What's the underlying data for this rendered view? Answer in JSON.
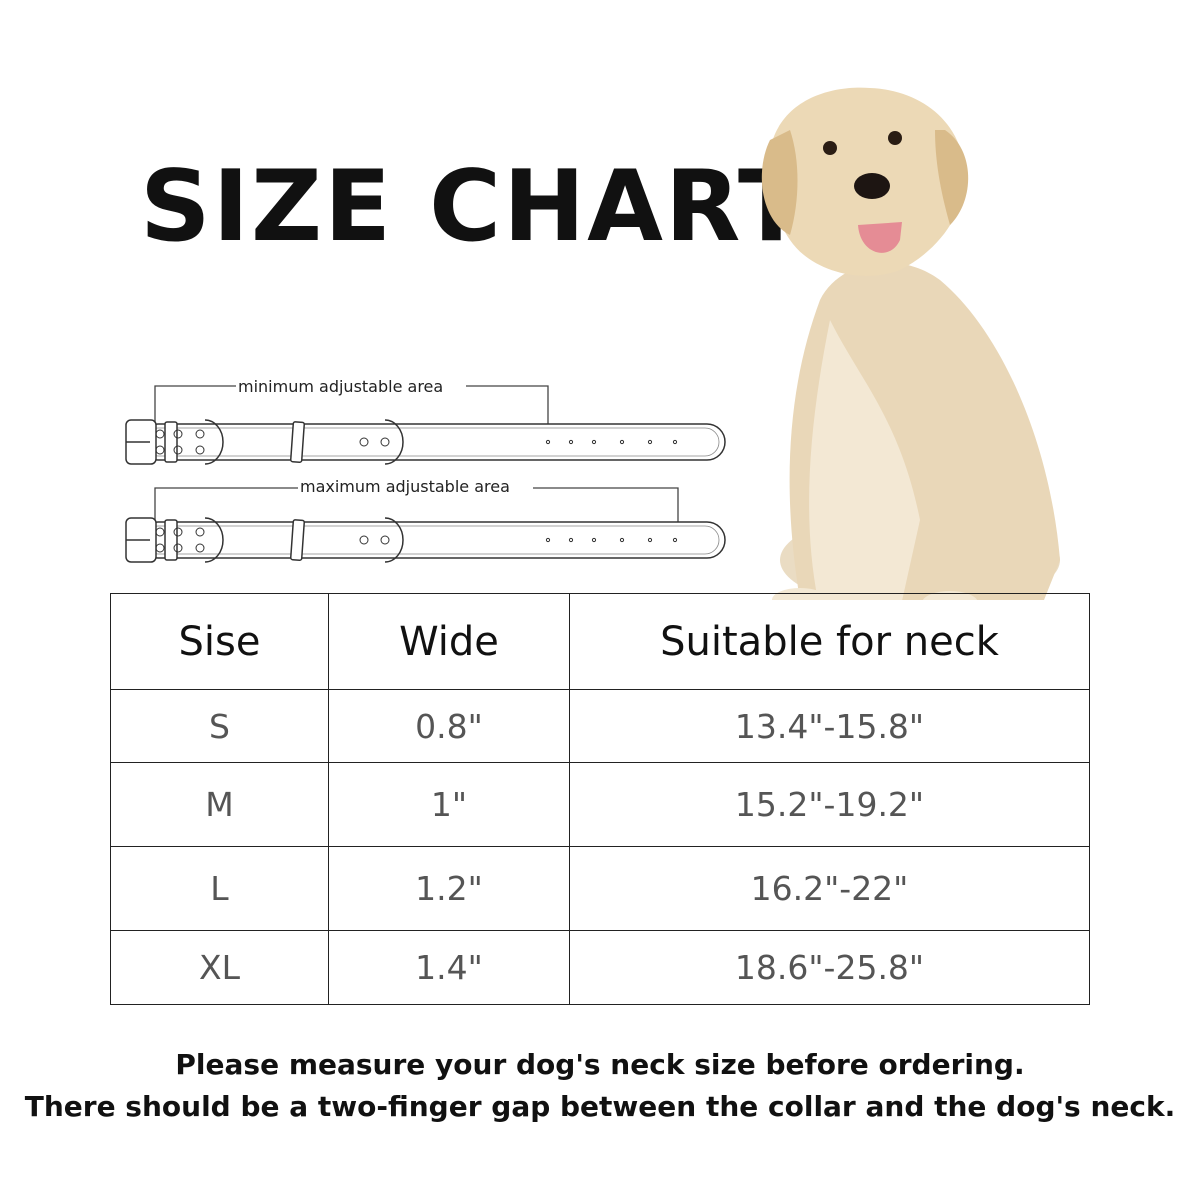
{
  "title": "SIZE CHART",
  "diagram": {
    "min_label": "minimum adjustable area",
    "max_label": "maximum adjustable area"
  },
  "table": {
    "headers": [
      "Sise",
      "Wide",
      "Suitable for neck"
    ],
    "rows": [
      [
        "S",
        "0.8\"",
        "13.4\"-15.8\""
      ],
      [
        "M",
        "1\"",
        "15.2\"-19.2\""
      ],
      [
        "L",
        "1.2\"",
        "16.2\"-22\""
      ],
      [
        "XL",
        "1.4\"",
        "18.6\"-25.8\""
      ]
    ]
  },
  "notes": [
    "Please measure your dog's neck size before ordering.",
    "There should be a two-finger gap between the collar and the dog's neck."
  ],
  "image": {
    "subject": "golden-retriever-dog-photo"
  }
}
